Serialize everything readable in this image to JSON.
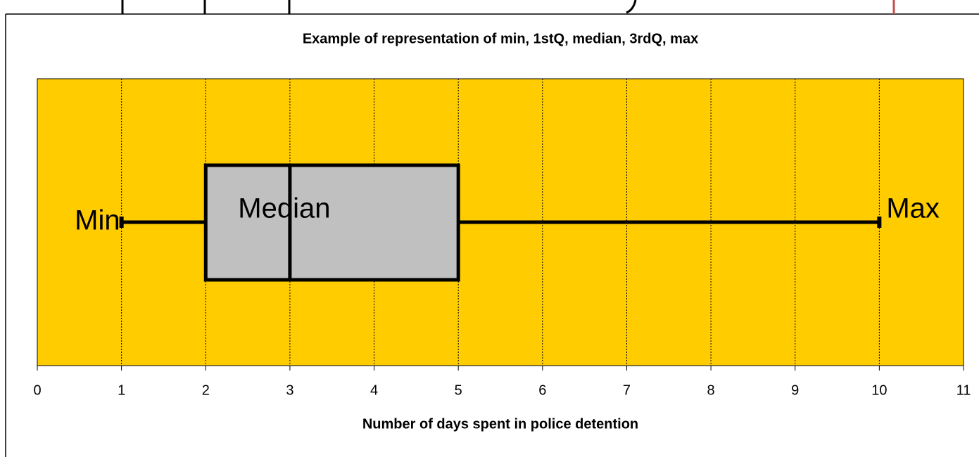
{
  "chart_data": {
    "type": "box",
    "title": "Example of representation of min, 1stQ, median, 3rdQ, max",
    "x_label": "Number of days spent in police detention",
    "min": 1,
    "q1": 2,
    "median": 3,
    "q3": 5,
    "max": 10,
    "annotations": {
      "min": "Min",
      "median": "Median",
      "max": "Max"
    },
    "xlim": [
      0,
      11
    ],
    "xticks": [
      0,
      1,
      2,
      3,
      4,
      5,
      6,
      7,
      8,
      9,
      10,
      11
    ],
    "grid": true,
    "color": "#c0c0c0",
    "background": "#ffcc00"
  }
}
